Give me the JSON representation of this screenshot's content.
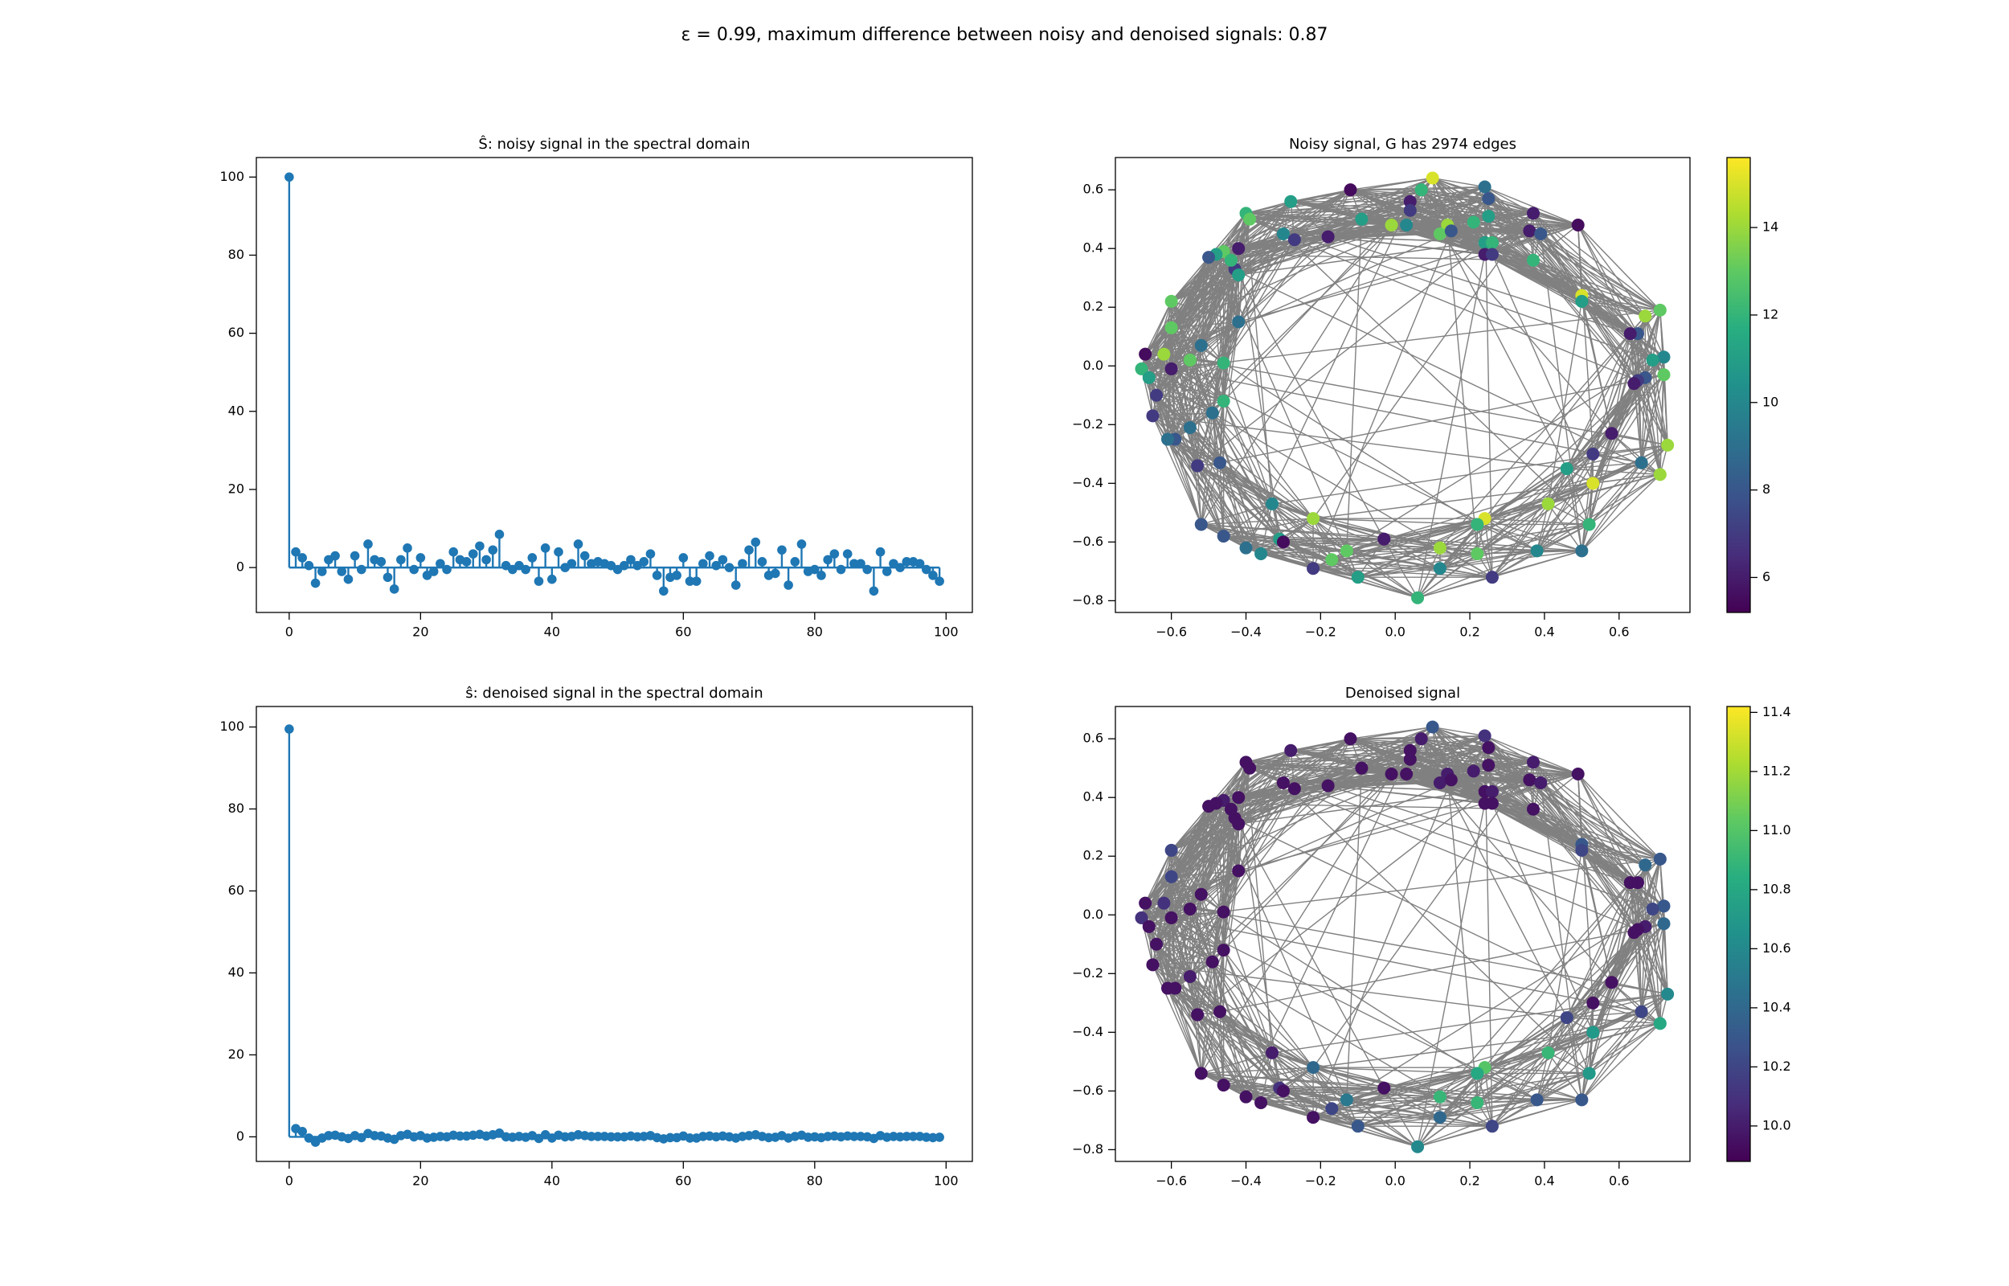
{
  "title": "ε = 0.99, maximum difference between noisy and denoised signals: 0.87",
  "chart_data": [
    {
      "type": "stem",
      "title": "Ŝ: noisy signal in the spectral domain",
      "color": "#1f77b4",
      "values": [
        100,
        4,
        2.5,
        0.5,
        -4,
        -1,
        2,
        3,
        -1,
        -3,
        3,
        -0.5,
        6,
        2,
        1.5,
        -2.5,
        -5.5,
        2,
        5,
        -0.5,
        2.5,
        -2,
        -1,
        1,
        -0.5,
        4,
        2,
        1.5,
        3.5,
        5.5,
        2,
        4.5,
        8.5,
        0.5,
        -0.5,
        0.5,
        -0.5,
        2.5,
        -3.5,
        5,
        -3,
        4,
        0,
        1,
        6,
        3,
        1,
        1.5,
        1,
        0.5,
        -0.5,
        0.5,
        2,
        0.5,
        1.5,
        3.5,
        -2,
        -6,
        -2.5,
        -2,
        2.5,
        -3.5,
        -3.5,
        1,
        3,
        0.5,
        2,
        0,
        -4.5,
        1,
        4.5,
        6.5,
        1.5,
        -2,
        -1.5,
        4.5,
        -4.5,
        1.5,
        6,
        -1,
        -0.5,
        -2,
        2,
        3.5,
        -0.5,
        3.5,
        1,
        1,
        -0.5,
        -6,
        4,
        -1,
        1,
        0,
        1.5,
        1.5,
        1,
        -0.5,
        -2,
        -3.5
      ],
      "xlim": [
        -5,
        104
      ],
      "xticks": [
        0,
        20,
        40,
        60,
        80,
        100
      ],
      "ylim": [
        -11.5,
        105
      ],
      "yticks": [
        0,
        20,
        40,
        60,
        80,
        100
      ]
    },
    {
      "type": "graph",
      "title": "Noisy signal, G has 2974 edges",
      "colormap": "viridis",
      "edge_color": "#808080",
      "x": [
        0.1,
        0.24,
        0.07,
        -0.12,
        0.04,
        -0.28,
        0.25,
        -0.4,
        -0.39,
        -0.09,
        0.04,
        0.25,
        0.37,
        0.21,
        0.14,
        0.12,
        0.03,
        -0.01,
        0.36,
        0.39,
        0.49,
        -0.18,
        -0.3,
        -0.27,
        0.15,
        0.24,
        0.26,
        -0.42,
        -0.46,
        -0.48,
        -0.5,
        -0.43,
        -0.42,
        -0.44,
        0.24,
        0.26,
        0.37,
        -0.6,
        -0.42,
        0.5,
        0.5,
        0.71,
        0.67,
        -0.6,
        0.65,
        0.63,
        -0.52,
        -0.67,
        -0.62,
        -0.55,
        -0.46,
        0.72,
        0.69,
        -0.6,
        -0.68,
        -0.66,
        0.72,
        0.67,
        0.65,
        0.64,
        -0.64,
        -0.46,
        -0.49,
        -0.65,
        -0.55,
        -0.59,
        -0.61,
        0.58,
        0.73,
        0.53,
        0.66,
        -0.53,
        -0.47,
        0.71,
        0.46,
        0.53,
        -0.33,
        0.41,
        -0.22,
        0.24,
        -0.52,
        0.22,
        0.52,
        -0.46,
        -0.31,
        -0.3,
        -0.03,
        -0.4,
        -0.36,
        -0.13,
        0.12,
        0.22,
        0.38,
        0.5,
        -0.17,
        -0.22,
        0.12,
        -0.1,
        0.26,
        0.06
      ],
      "y": [
        0.64,
        0.61,
        0.6,
        0.6,
        0.56,
        0.56,
        0.57,
        0.52,
        0.5,
        0.5,
        0.53,
        0.51,
        0.52,
        0.49,
        0.48,
        0.45,
        0.48,
        0.48,
        0.46,
        0.45,
        0.48,
        0.44,
        0.45,
        0.43,
        0.46,
        0.42,
        0.42,
        0.4,
        0.39,
        0.38,
        0.37,
        0.33,
        0.31,
        0.36,
        0.38,
        0.38,
        0.36,
        0.22,
        0.15,
        0.24,
        0.22,
        0.19,
        0.17,
        0.13,
        0.11,
        0.11,
        0.07,
        0.04,
        0.04,
        0.02,
        0.01,
        0.03,
        0.02,
        -0.01,
        -0.01,
        -0.04,
        -0.03,
        -0.04,
        -0.05,
        -0.06,
        -0.1,
        -0.12,
        -0.16,
        -0.17,
        -0.21,
        -0.25,
        -0.25,
        -0.23,
        -0.27,
        -0.3,
        -0.33,
        -0.34,
        -0.33,
        -0.37,
        -0.35,
        -0.4,
        -0.47,
        -0.47,
        -0.52,
        -0.52,
        -0.54,
        -0.54,
        -0.54,
        -0.58,
        -0.59,
        -0.6,
        -0.59,
        -0.62,
        -0.64,
        -0.63,
        -0.62,
        -0.64,
        -0.63,
        -0.63,
        -0.66,
        -0.69,
        -0.69,
        -0.72,
        -0.72,
        -0.79
      ],
      "values": [
        15,
        9,
        12,
        5.5,
        6,
        11,
        8,
        12,
        13,
        11,
        7,
        11,
        6,
        12,
        14,
        13,
        10,
        14,
        6,
        8,
        5.5,
        6,
        10,
        7,
        8,
        11,
        12,
        6,
        13,
        11,
        8,
        7,
        11,
        12,
        6,
        7,
        12,
        13,
        9,
        15,
        11,
        13,
        14,
        13,
        8,
        6,
        9,
        5.5,
        14,
        13,
        12,
        10,
        11,
        6,
        12,
        11,
        13,
        8,
        7,
        6,
        7,
        12,
        9,
        7,
        9,
        8,
        9,
        6,
        14,
        7,
        9,
        7,
        8,
        14,
        11,
        15,
        10,
        14,
        14,
        15,
        8,
        12,
        12,
        8,
        11,
        5.5,
        6,
        9,
        10,
        13,
        14,
        13,
        10,
        9,
        13,
        7,
        10,
        11,
        7,
        12
      ],
      "xlim": [
        -0.75,
        0.79
      ],
      "xticks": [
        {
          "value": -0.6,
          "label": "−0.6"
        },
        {
          "value": -0.4,
          "label": "−0.4"
        },
        {
          "value": -0.2,
          "label": "−0.2"
        },
        {
          "value": 0,
          "label": "0.0"
        },
        0.2,
        0.4,
        0.6
      ],
      "ylim": [
        -0.84,
        0.71
      ],
      "yticks": [
        {
          "value": -0.8,
          "label": "−0.8"
        },
        {
          "value": -0.6,
          "label": "−0.6"
        },
        {
          "value": -0.4,
          "label": "−0.4"
        },
        {
          "value": -0.2,
          "label": "−0.2"
        },
        {
          "value": 0,
          "label": "0.0"
        },
        0.2,
        0.4,
        0.6
      ],
      "clim": [
        5.2,
        15.6
      ],
      "cticks": [
        6,
        8,
        10,
        12,
        14
      ]
    },
    {
      "type": "stem",
      "title": "ŝ: denoised signal in the spectral domain",
      "color": "#1f77b4",
      "values": [
        99.5,
        2,
        1.3,
        -0.3,
        -1.3,
        -0.3,
        0.3,
        0.4,
        0,
        -0.4,
        0.3,
        -0.2,
        0.8,
        0.3,
        0.2,
        -0.3,
        -0.6,
        0.3,
        0.6,
        0,
        0.3,
        -0.3,
        -0.1,
        0.1,
        0,
        0.4,
        0.2,
        0.2,
        0.4,
        0.6,
        0.2,
        0.5,
        0.9,
        0,
        -0.1,
        0.1,
        -0.1,
        0.3,
        -0.4,
        0.5,
        -0.3,
        0.4,
        0,
        0.1,
        0.5,
        0.3,
        0.1,
        0.1,
        0.1,
        0,
        0,
        0,
        0.2,
        0,
        0.1,
        0.3,
        -0.2,
        -0.5,
        -0.2,
        -0.2,
        0.2,
        -0.3,
        -0.3,
        0.1,
        0.2,
        0,
        0.2,
        0,
        -0.3,
        0.1,
        0.3,
        0.5,
        0.1,
        -0.2,
        -0.1,
        0.3,
        -0.3,
        0.1,
        0.4,
        -0.1,
        0,
        -0.2,
        0.1,
        0.2,
        0,
        0.2,
        0.1,
        0.1,
        0,
        -0.4,
        0.3,
        -0.1,
        0.1,
        0,
        0.1,
        0.1,
        0.1,
        -0.1,
        -0.2,
        -0.1
      ],
      "xlim": [
        -5,
        104
      ],
      "xticks": [
        0,
        20,
        40,
        60,
        80,
        100
      ],
      "ylim": [
        -6,
        105
      ],
      "yticks": [
        0,
        20,
        40,
        60,
        80,
        100
      ]
    },
    {
      "type": "graph",
      "title": "Denoised signal",
      "colormap": "viridis",
      "edge_color": "#808080",
      "x": [
        0.1,
        0.24,
        0.07,
        -0.12,
        0.04,
        -0.28,
        0.25,
        -0.4,
        -0.39,
        -0.09,
        0.04,
        0.25,
        0.37,
        0.21,
        0.14,
        0.12,
        0.03,
        -0.01,
        0.36,
        0.39,
        0.49,
        -0.18,
        -0.3,
        -0.27,
        0.15,
        0.24,
        0.26,
        -0.42,
        -0.46,
        -0.48,
        -0.5,
        -0.43,
        -0.42,
        -0.44,
        0.24,
        0.26,
        0.37,
        -0.6,
        -0.42,
        0.5,
        0.5,
        0.71,
        0.67,
        -0.6,
        0.65,
        0.63,
        -0.52,
        -0.67,
        -0.62,
        -0.55,
        -0.46,
        0.72,
        0.69,
        -0.6,
        -0.68,
        -0.66,
        0.72,
        0.67,
        0.65,
        0.64,
        -0.64,
        -0.46,
        -0.49,
        -0.65,
        -0.55,
        -0.59,
        -0.61,
        0.58,
        0.73,
        0.53,
        0.66,
        -0.53,
        -0.47,
        0.71,
        0.46,
        0.53,
        -0.33,
        0.41,
        -0.22,
        0.24,
        -0.52,
        0.22,
        0.52,
        -0.46,
        -0.31,
        -0.3,
        -0.03,
        -0.4,
        -0.36,
        -0.13,
        0.12,
        0.22,
        0.38,
        0.5,
        -0.17,
        -0.22,
        0.12,
        -0.1,
        0.26,
        0.06
      ],
      "y": [
        0.64,
        0.61,
        0.6,
        0.6,
        0.56,
        0.56,
        0.57,
        0.52,
        0.5,
        0.5,
        0.53,
        0.51,
        0.52,
        0.49,
        0.48,
        0.45,
        0.48,
        0.48,
        0.46,
        0.45,
        0.48,
        0.44,
        0.45,
        0.43,
        0.46,
        0.42,
        0.42,
        0.4,
        0.39,
        0.38,
        0.37,
        0.33,
        0.31,
        0.36,
        0.38,
        0.38,
        0.36,
        0.22,
        0.15,
        0.24,
        0.22,
        0.19,
        0.17,
        0.13,
        0.11,
        0.11,
        0.07,
        0.04,
        0.04,
        0.02,
        0.01,
        0.03,
        0.02,
        -0.01,
        -0.01,
        -0.04,
        -0.03,
        -0.04,
        -0.05,
        -0.06,
        -0.1,
        -0.12,
        -0.16,
        -0.17,
        -0.21,
        -0.25,
        -0.25,
        -0.23,
        -0.27,
        -0.3,
        -0.33,
        -0.34,
        -0.33,
        -0.37,
        -0.35,
        -0.4,
        -0.47,
        -0.47,
        -0.52,
        -0.52,
        -0.54,
        -0.54,
        -0.54,
        -0.58,
        -0.59,
        -0.6,
        -0.59,
        -0.62,
        -0.64,
        -0.63,
        -0.62,
        -0.64,
        -0.63,
        -0.63,
        -0.66,
        -0.69,
        -0.69,
        -0.72,
        -0.72,
        -0.79
      ],
      "values": [
        10.3,
        10.1,
        10.0,
        9.95,
        9.95,
        10.0,
        9.95,
        9.95,
        9.95,
        9.95,
        9.95,
        9.95,
        10.0,
        10.0,
        10.0,
        10.0,
        9.95,
        9.95,
        9.95,
        10.0,
        9.95,
        9.95,
        9.95,
        9.95,
        9.95,
        9.95,
        10.0,
        9.95,
        10.0,
        9.95,
        9.95,
        9.95,
        9.95,
        9.95,
        9.95,
        9.95,
        9.95,
        10.2,
        9.95,
        10.3,
        10.2,
        10.3,
        10.4,
        10.2,
        9.95,
        9.95,
        9.95,
        9.95,
        10.1,
        9.95,
        9.95,
        10.3,
        10.2,
        9.95,
        10.1,
        9.95,
        10.4,
        10.0,
        9.95,
        9.95,
        9.95,
        9.95,
        9.95,
        9.95,
        10.0,
        9.95,
        9.95,
        9.95,
        10.6,
        9.95,
        10.2,
        9.95,
        9.95,
        10.8,
        10.2,
        10.7,
        10.0,
        10.9,
        10.4,
        11.0,
        9.95,
        10.8,
        10.7,
        9.95,
        10.1,
        9.95,
        9.95,
        9.95,
        9.95,
        10.5,
        10.9,
        10.9,
        10.3,
        10.3,
        10.2,
        9.95,
        10.4,
        10.3,
        10.2,
        10.6
      ],
      "xlim": [
        -0.75,
        0.79
      ],
      "xticks": [
        {
          "value": -0.6,
          "label": "−0.6"
        },
        {
          "value": -0.4,
          "label": "−0.4"
        },
        {
          "value": -0.2,
          "label": "−0.2"
        },
        {
          "value": 0,
          "label": "0.0"
        },
        0.2,
        0.4,
        0.6
      ],
      "ylim": [
        -0.84,
        0.71
      ],
      "yticks": [
        {
          "value": -0.8,
          "label": "−0.8"
        },
        {
          "value": -0.6,
          "label": "−0.6"
        },
        {
          "value": -0.4,
          "label": "−0.4"
        },
        {
          "value": -0.2,
          "label": "−0.2"
        },
        {
          "value": 0,
          "label": "0.0"
        },
        0.2,
        0.4,
        0.6
      ],
      "clim": [
        9.88,
        11.42
      ],
      "cticks": [
        {
          "value": 10,
          "label": "10.0"
        },
        10.2,
        10.4,
        10.6,
        10.8,
        {
          "value": 11,
          "label": "11.0"
        },
        11.2,
        11.4
      ]
    }
  ]
}
